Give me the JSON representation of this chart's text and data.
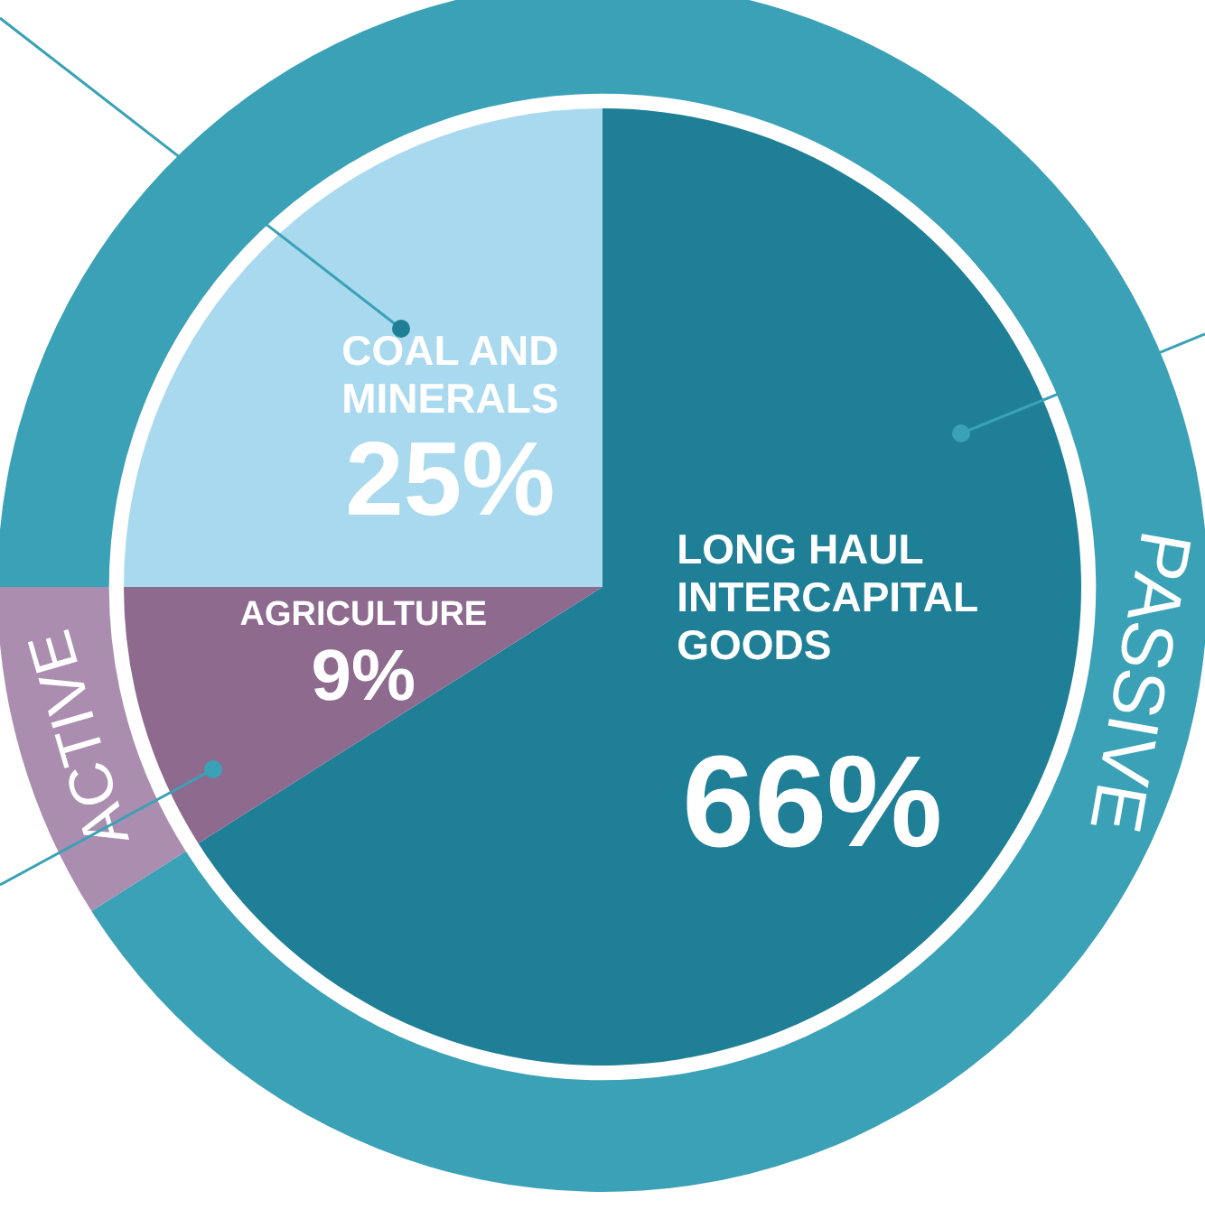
{
  "chart_data": [
    {
      "type": "pie",
      "categories": [
        "COAL AND MINERALS",
        "LONG HAUL INTERCAPITAL GOODS",
        "AGRICULTURE"
      ],
      "values": [
        25,
        66,
        9
      ],
      "value_labels": [
        "25%",
        "66%",
        "9%"
      ],
      "colors": [
        "#a9d9ee",
        "#1f7f96",
        "#8e6a8f"
      ]
    },
    {
      "type": "donut",
      "categories": [
        "PASSIVE",
        "ACTIVE"
      ],
      "values": [
        91,
        9
      ],
      "colors": [
        "#3aa1b6",
        "#ab8db0"
      ]
    }
  ]
}
